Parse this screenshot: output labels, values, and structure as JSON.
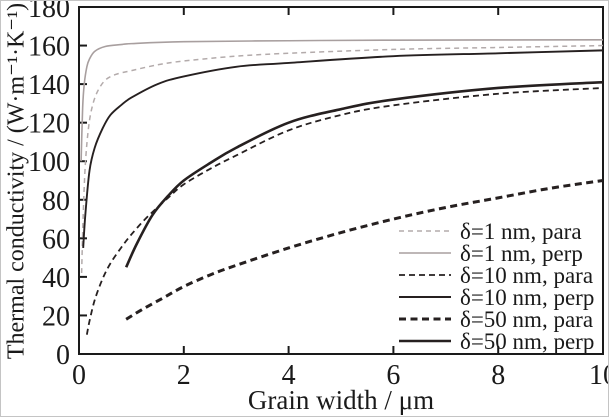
{
  "figure": {
    "background": "#ffffff",
    "border_color": "#c4c4c4"
  },
  "chart_data": {
    "type": "line",
    "title": "",
    "xlabel": "Grain width / μm",
    "ylabel": "Thermal conductivity / (W·m⁻¹·K⁻¹)",
    "xlim": [
      0,
      10
    ],
    "ylim": [
      0,
      180
    ],
    "x_ticks": [
      0,
      2,
      4,
      6,
      8,
      10
    ],
    "y_ticks": [
      0,
      20,
      40,
      60,
      80,
      100,
      120,
      140,
      160,
      180
    ],
    "grid": false,
    "legend_position": "lower right",
    "axis_color": "#1a1a1a",
    "light_color": "#aaa2a2",
    "dark_color": "#262020",
    "series": [
      {
        "name": "δ=1 nm, para",
        "style": "dashed",
        "color": "#b3abab",
        "width": 1.5,
        "dash": "5 4",
        "points": [
          [
            0.05,
            42
          ],
          [
            0.08,
            72
          ],
          [
            0.12,
            98
          ],
          [
            0.18,
            117
          ],
          [
            0.25,
            128
          ],
          [
            0.35,
            136
          ],
          [
            0.5,
            142
          ],
          [
            0.7,
            145
          ],
          [
            1,
            147
          ],
          [
            1.5,
            150
          ],
          [
            2,
            152
          ],
          [
            3,
            154.5
          ],
          [
            4,
            156
          ],
          [
            6,
            158
          ],
          [
            8,
            159
          ],
          [
            10,
            160
          ]
        ]
      },
      {
        "name": "δ=1 nm, perp",
        "style": "solid",
        "color": "#a89f9f",
        "width": 1.6,
        "dash": "",
        "points": [
          [
            0.04,
            100
          ],
          [
            0.07,
            128
          ],
          [
            0.1,
            140
          ],
          [
            0.15,
            149
          ],
          [
            0.2,
            153
          ],
          [
            0.3,
            157
          ],
          [
            0.5,
            159.5
          ],
          [
            0.8,
            160.5
          ],
          [
            1,
            161
          ],
          [
            2,
            162
          ],
          [
            4,
            162.5
          ],
          [
            6,
            162.8
          ],
          [
            10,
            163
          ]
        ]
      },
      {
        "name": "δ=10 nm, para",
        "style": "dashed",
        "color": "#262020",
        "width": 1.8,
        "dash": "6 4",
        "points": [
          [
            0.15,
            10
          ],
          [
            0.2,
            17
          ],
          [
            0.3,
            28
          ],
          [
            0.45,
            39
          ],
          [
            0.6,
            47
          ],
          [
            0.8,
            55
          ],
          [
            1,
            62
          ],
          [
            1.3,
            71
          ],
          [
            1.7,
            81
          ],
          [
            2,
            88
          ],
          [
            2.5,
            96
          ],
          [
            3,
            103
          ],
          [
            4,
            116
          ],
          [
            5,
            124
          ],
          [
            6,
            129
          ],
          [
            8,
            135
          ],
          [
            10,
            138
          ]
        ]
      },
      {
        "name": "δ=10 nm, perp",
        "style": "solid",
        "color": "#262020",
        "width": 1.9,
        "dash": "",
        "points": [
          [
            0.08,
            55
          ],
          [
            0.12,
            72
          ],
          [
            0.2,
            95
          ],
          [
            0.3,
            107
          ],
          [
            0.45,
            117
          ],
          [
            0.6,
            124
          ],
          [
            0.8,
            129
          ],
          [
            1,
            133
          ],
          [
            1.5,
            140
          ],
          [
            2,
            144
          ],
          [
            3,
            149
          ],
          [
            4,
            151
          ],
          [
            6,
            154.5
          ],
          [
            8,
            156
          ],
          [
            10,
            157.5
          ]
        ]
      },
      {
        "name": "δ=50 nm, para",
        "style": "dashed",
        "color": "#262020",
        "width": 3,
        "dash": "7 4.5",
        "points": [
          [
            0.9,
            18
          ],
          [
            1.2,
            23
          ],
          [
            1.6,
            29
          ],
          [
            2,
            35
          ],
          [
            2.5,
            41
          ],
          [
            3,
            46
          ],
          [
            4,
            55
          ],
          [
            5,
            63
          ],
          [
            6,
            70
          ],
          [
            7,
            76
          ],
          [
            8,
            81
          ],
          [
            9,
            86
          ],
          [
            10,
            90
          ]
        ]
      },
      {
        "name": "δ=50 nm, perp",
        "style": "solid",
        "color": "#262020",
        "width": 2.6,
        "dash": "",
        "points": [
          [
            0.9,
            45
          ],
          [
            1.1,
            57
          ],
          [
            1.4,
            72
          ],
          [
            1.7,
            82
          ],
          [
            2,
            90
          ],
          [
            2.5,
            99
          ],
          [
            3,
            107
          ],
          [
            4,
            120
          ],
          [
            5,
            127
          ],
          [
            6,
            132
          ],
          [
            8,
            138
          ],
          [
            10,
            141
          ]
        ]
      }
    ]
  }
}
